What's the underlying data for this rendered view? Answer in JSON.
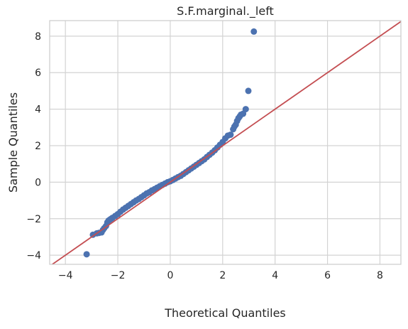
{
  "chart_data": {
    "type": "scatter",
    "title": "S.F.marginal._left",
    "xlabel": "Theoretical Quantiles",
    "ylabel": "Sample Quantiles",
    "xlim": [
      -4.6,
      8.8
    ],
    "ylim": [
      -4.5,
      8.85
    ],
    "xticks": [
      -4,
      -2,
      0,
      2,
      4,
      6,
      8
    ],
    "yticks": [
      -4,
      -2,
      0,
      2,
      4,
      6,
      8
    ],
    "xtick_labels": [
      "−4",
      "−2",
      "0",
      "2",
      "4",
      "6",
      "8"
    ],
    "ytick_labels": [
      "−4",
      "−2",
      "0",
      "2",
      "4",
      "6",
      "8"
    ],
    "grid": true,
    "series": [
      {
        "kind": "points",
        "color": "#4c72b0",
        "x": [
          -3.19,
          -2.95,
          -2.8,
          -2.72,
          -2.62,
          -2.57,
          -2.52,
          -2.45,
          -2.4,
          -2.35,
          -2.3,
          -2.25,
          -2.2,
          -2.1,
          -2.0,
          -1.9,
          -1.8,
          -1.7,
          -1.6,
          -1.5,
          -1.4,
          -1.3,
          -1.2,
          -1.1,
          -1.0,
          -0.9,
          -0.8,
          -0.7,
          -0.6,
          -0.5,
          -0.4,
          -0.3,
          -0.2,
          -0.1,
          0.0,
          0.1,
          0.2,
          0.3,
          0.4,
          0.5,
          0.6,
          0.7,
          0.8,
          0.9,
          1.0,
          1.1,
          1.2,
          1.3,
          1.4,
          1.5,
          1.6,
          1.7,
          1.8,
          1.9,
          2.0,
          2.1,
          2.2,
          2.3,
          2.4,
          2.45,
          2.5,
          2.55,
          2.6,
          2.65,
          2.7,
          2.78,
          2.88,
          2.98,
          3.19
        ],
        "y": [
          -3.95,
          -2.88,
          -2.8,
          -2.78,
          -2.75,
          -2.62,
          -2.52,
          -2.4,
          -2.2,
          -2.1,
          -2.05,
          -2.0,
          -1.95,
          -1.85,
          -1.75,
          -1.62,
          -1.5,
          -1.4,
          -1.3,
          -1.2,
          -1.1,
          -1.0,
          -0.92,
          -0.82,
          -0.72,
          -0.62,
          -0.55,
          -0.45,
          -0.38,
          -0.3,
          -0.22,
          -0.15,
          -0.08,
          0.0,
          0.05,
          0.12,
          0.2,
          0.28,
          0.35,
          0.45,
          0.55,
          0.65,
          0.75,
          0.85,
          0.95,
          1.05,
          1.15,
          1.25,
          1.38,
          1.5,
          1.62,
          1.75,
          1.9,
          2.05,
          2.2,
          2.4,
          2.55,
          2.6,
          2.9,
          3.05,
          3.15,
          3.35,
          3.5,
          3.6,
          3.7,
          3.75,
          4.0,
          5.0,
          8.25
        ]
      },
      {
        "kind": "reference-line",
        "color": "#c44e52",
        "x": [
          -4.6,
          8.8
        ],
        "y": [
          -4.6,
          8.8
        ]
      }
    ]
  }
}
